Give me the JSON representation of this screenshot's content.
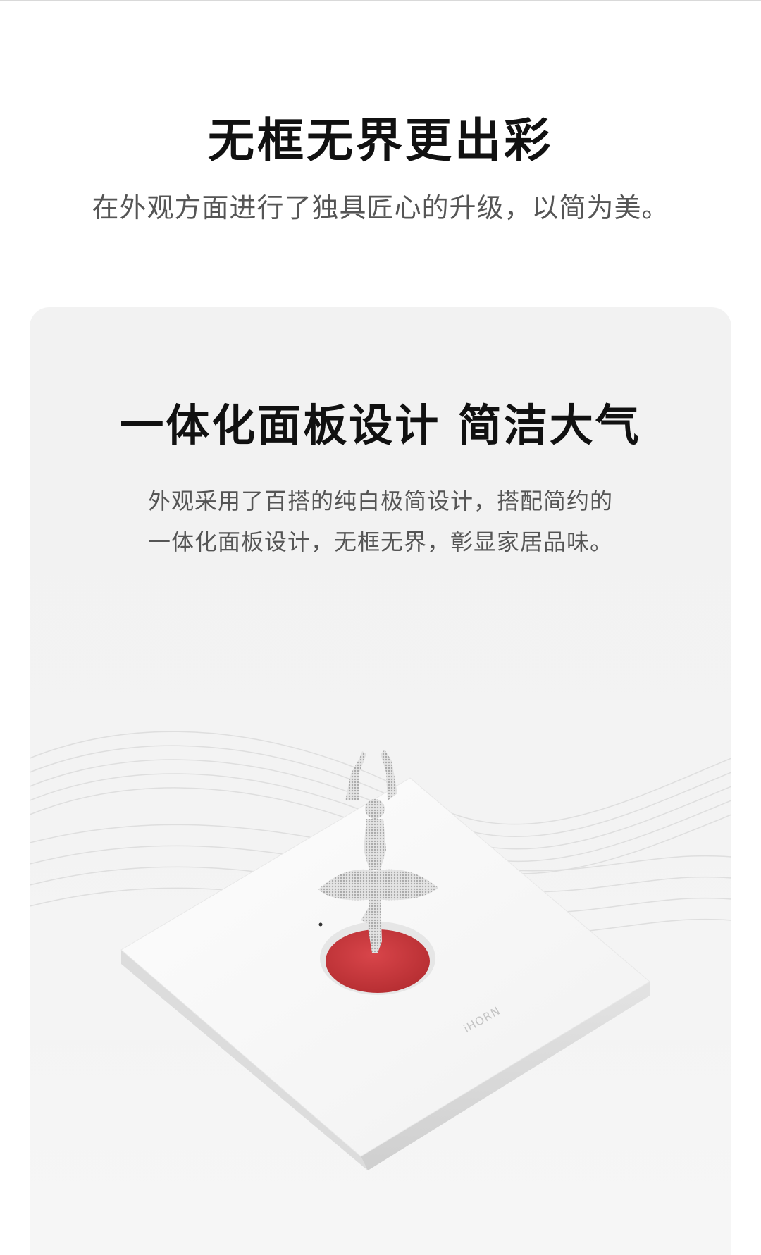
{
  "hero": {
    "title": "无框无界更出彩",
    "subtitle": "在外观方面进行了独具匠心的升级，以简为美。"
  },
  "card": {
    "title": "一体化面板设计 简洁大气",
    "description_lines": [
      "外观采用了百搭的纯白极简设计，搭配简约的",
      "一体化面板设计，无框无界，彰显家居品味。"
    ]
  },
  "product": {
    "brand_mark": "iHORN",
    "button_color": "#c8363a",
    "panel_color": "#fafafa"
  }
}
